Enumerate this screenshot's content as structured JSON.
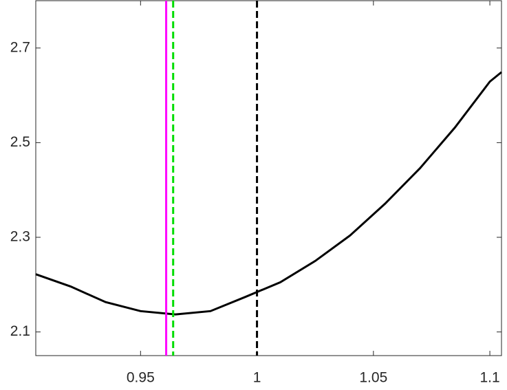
{
  "chart_data": {
    "type": "line",
    "x": [
      0.905,
      0.92,
      0.935,
      0.95,
      0.965,
      0.98,
      0.995,
      1.01,
      1.025,
      1.04,
      1.055,
      1.07,
      1.085,
      1.1,
      1.105
    ],
    "series": [
      {
        "color": "#000000",
        "values": [
          2.222,
          2.196,
          2.163,
          2.144,
          2.137,
          2.144,
          2.174,
          2.205,
          2.25,
          2.304,
          2.371,
          2.446,
          2.532,
          2.629,
          2.649
        ]
      }
    ],
    "vlines": [
      {
        "x": 0.961,
        "color": "#ff00ff",
        "style": "solid"
      },
      {
        "x": 0.964,
        "color": "#00dd00",
        "style": "dashed"
      },
      {
        "x": 1,
        "color": "#000000",
        "style": "dashed"
      }
    ],
    "xlim": [
      0.905,
      1.105
    ],
    "ylim": [
      2.05,
      2.8
    ],
    "xticks": [
      0.95,
      1,
      1.05,
      1.1
    ],
    "yticks": [
      2.1,
      2.3,
      2.5,
      2.7
    ]
  }
}
